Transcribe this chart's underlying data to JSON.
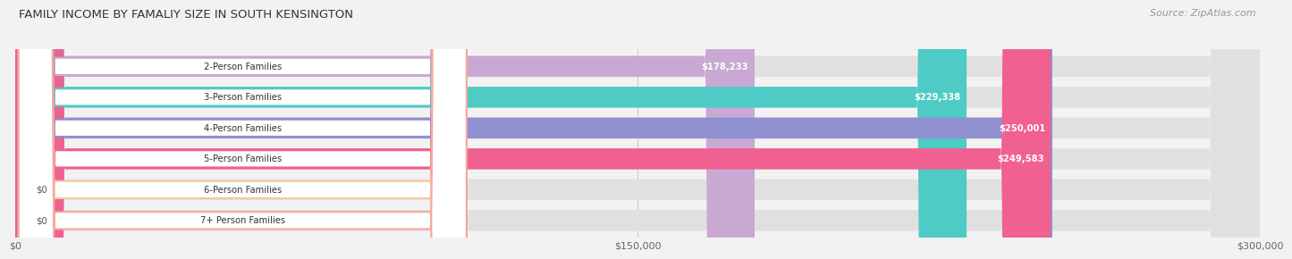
{
  "title": "FAMILY INCOME BY FAMALIY SIZE IN SOUTH KENSINGTON",
  "source": "Source: ZipAtlas.com",
  "categories": [
    "2-Person Families",
    "3-Person Families",
    "4-Person Families",
    "5-Person Families",
    "6-Person Families",
    "7+ Person Families"
  ],
  "values": [
    178233,
    229338,
    250001,
    249583,
    0,
    0
  ],
  "bar_colors": [
    "#c9a8d4",
    "#4ecbc4",
    "#9090d0",
    "#f06090",
    "#f5c99a",
    "#f5a8a0"
  ],
  "value_labels": [
    "$178,233",
    "$229,338",
    "$250,001",
    "$249,583",
    "$0",
    "$0"
  ],
  "xmax": 300000,
  "xticklabels": [
    "$0",
    "$150,000",
    "$300,000"
  ],
  "background_color": "#f2f2f2",
  "title_fontsize": 9.5,
  "source_fontsize": 8.0
}
